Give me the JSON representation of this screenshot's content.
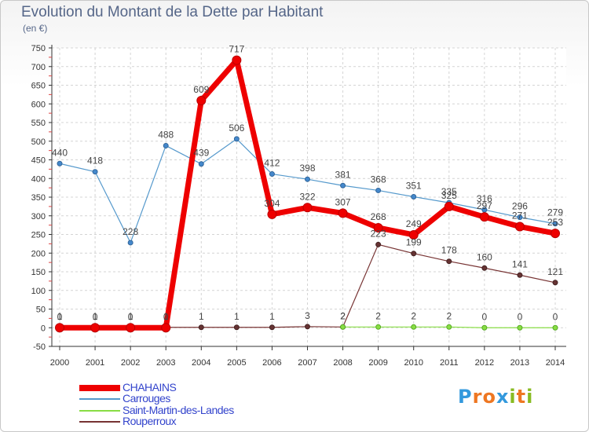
{
  "title": "Evolution du Montant de la Dette par Habitant",
  "subtitle": "(en €)",
  "logo": "Proxiti",
  "chart_data": {
    "type": "line",
    "title": "Evolution du Montant de la Dette par Habitant",
    "ylabel": "(en €)",
    "xlabel": "",
    "ylim": [
      -50,
      750
    ],
    "yticks": [
      -50,
      0,
      50,
      100,
      150,
      200,
      250,
      300,
      350,
      400,
      450,
      500,
      550,
      600,
      650,
      700,
      750
    ],
    "grid": true,
    "legend_position": "bottom-left",
    "categories": [
      "2000",
      "2001",
      "2002",
      "2003",
      "2004",
      "2005",
      "2006",
      "2007",
      "2008",
      "2009",
      "2010",
      "2011",
      "2012",
      "2013",
      "2014"
    ],
    "series": [
      {
        "name": "CHAHAINS",
        "color": "#ee0000",
        "values": [
          0,
          0,
          0,
          0,
          609,
          717,
          304,
          322,
          307,
          268,
          249,
          325,
          297,
          271,
          253
        ],
        "labels": [
          "0",
          "0",
          "0",
          "0",
          "609",
          "717",
          "304",
          "322",
          "307",
          "268",
          "249",
          "325",
          "297",
          "271",
          "253"
        ]
      },
      {
        "name": "Carrouges",
        "color": "#5599cc",
        "values": [
          440,
          418,
          228,
          488,
          439,
          506,
          412,
          398,
          381,
          368,
          351,
          335,
          316,
          296,
          279
        ],
        "labels": [
          "440",
          "418",
          "228",
          "488",
          "439",
          "506",
          "412",
          "398",
          "381",
          "368",
          "351",
          "335",
          "316",
          "296",
          "279"
        ]
      },
      {
        "name": "Saint-Martin-des-Landes",
        "color": "#88dd44",
        "values": [
          null,
          null,
          null,
          null,
          null,
          null,
          null,
          null,
          2,
          2,
          2,
          2,
          0,
          0,
          0
        ],
        "labels": [
          "",
          "",
          "",
          "",
          "",
          "",
          "",
          "",
          "2",
          "2",
          "2",
          "2",
          "0",
          "0",
          "0"
        ]
      },
      {
        "name": "Rouperroux",
        "color": "#773333",
        "values": [
          1,
          1,
          1,
          1,
          1,
          1,
          1,
          3,
          2,
          223,
          199,
          178,
          160,
          141,
          121
        ],
        "labels": [
          "1",
          "1",
          "1",
          "1",
          "1",
          "1",
          "1",
          "3",
          "2",
          "223",
          "199",
          "178",
          "160",
          "141",
          "121"
        ]
      }
    ]
  }
}
